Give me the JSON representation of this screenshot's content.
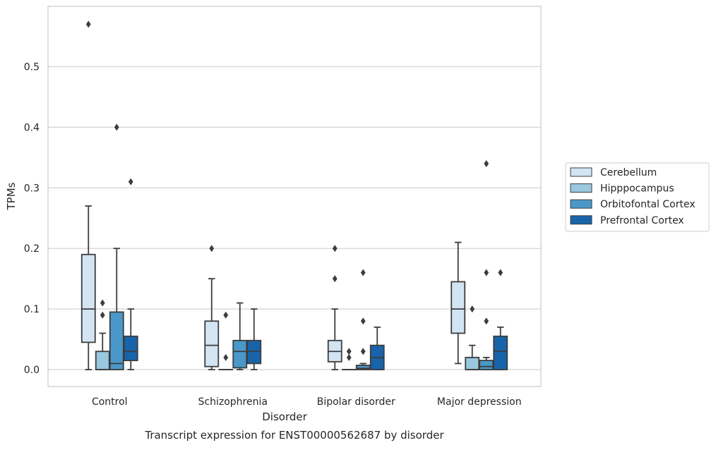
{
  "chart_data": {
    "type": "box",
    "caption": "Transcript expression for ENST00000562687 by disorder",
    "xlabel": "Disorder",
    "ylabel": "TPMs",
    "ylim": [
      -0.028,
      0.6
    ],
    "yticks": [
      0.0,
      0.1,
      0.2,
      0.3,
      0.4,
      0.5
    ],
    "ytick_labels": [
      "0.0",
      "0.1",
      "0.2",
      "0.3",
      "0.4",
      "0.5"
    ],
    "grid": "horizontal",
    "legend_position": "right",
    "categories": [
      "Control",
      "Schizophrenia",
      "Bipolar disorder",
      "Major depression"
    ],
    "series": [
      {
        "name": "Cerebellum",
        "color": "#d3e4f3",
        "boxes": [
          {
            "min": 0.0,
            "q1": 0.045,
            "median": 0.1,
            "q3": 0.19,
            "max": 0.27,
            "outliers": [
              0.57
            ]
          },
          {
            "min": 0.0,
            "q1": 0.005,
            "median": 0.04,
            "q3": 0.08,
            "max": 0.15,
            "outliers": [
              0.2
            ]
          },
          {
            "min": 0.0,
            "q1": 0.013,
            "median": 0.03,
            "q3": 0.048,
            "max": 0.1,
            "outliers": [
              0.15,
              0.2
            ]
          },
          {
            "min": 0.01,
            "q1": 0.06,
            "median": 0.1,
            "q3": 0.145,
            "max": 0.21,
            "outliers": []
          }
        ]
      },
      {
        "name": "Hipppocampus",
        "color": "#9ac8e0",
        "boxes": [
          {
            "min": 0.0,
            "q1": 0.0,
            "median": 0.0,
            "q3": 0.03,
            "max": 0.06,
            "outliers": [
              0.09,
              0.11
            ]
          },
          {
            "min": 0.0,
            "q1": 0.0,
            "median": 0.0,
            "q3": 0.0,
            "max": 0.0,
            "outliers": [
              0.02,
              0.09
            ]
          },
          {
            "min": 0.0,
            "q1": 0.0,
            "median": 0.0,
            "q3": 0.0,
            "max": 0.0,
            "outliers": [
              0.02,
              0.03
            ]
          },
          {
            "min": 0.0,
            "q1": 0.0,
            "median": 0.0,
            "q3": 0.02,
            "max": 0.04,
            "outliers": [
              0.1
            ]
          }
        ]
      },
      {
        "name": "Orbitofontal Cortex",
        "color": "#4a98c9",
        "boxes": [
          {
            "min": 0.0,
            "q1": 0.0,
            "median": 0.01,
            "q3": 0.095,
            "max": 0.2,
            "outliers": [
              0.4
            ]
          },
          {
            "min": 0.0,
            "q1": 0.003,
            "median": 0.03,
            "q3": 0.048,
            "max": 0.11,
            "outliers": []
          },
          {
            "min": 0.0,
            "q1": 0.0,
            "median": 0.002,
            "q3": 0.007,
            "max": 0.01,
            "outliers": [
              0.03,
              0.08,
              0.16
            ]
          },
          {
            "min": 0.0,
            "q1": 0.0,
            "median": 0.005,
            "q3": 0.015,
            "max": 0.02,
            "outliers": [
              0.08,
              0.16,
              0.34
            ]
          }
        ]
      },
      {
        "name": "Prefrontal Cortex",
        "color": "#1764ab",
        "boxes": [
          {
            "min": 0.0,
            "q1": 0.015,
            "median": 0.03,
            "q3": 0.055,
            "max": 0.1,
            "outliers": [
              0.31
            ]
          },
          {
            "min": 0.0,
            "q1": 0.01,
            "median": 0.03,
            "q3": 0.048,
            "max": 0.1,
            "outliers": []
          },
          {
            "min": 0.0,
            "q1": 0.0,
            "median": 0.02,
            "q3": 0.04,
            "max": 0.07,
            "outliers": []
          },
          {
            "min": 0.0,
            "q1": 0.0,
            "median": 0.03,
            "q3": 0.055,
            "max": 0.07,
            "outliers": [
              0.16
            ]
          }
        ]
      }
    ]
  }
}
